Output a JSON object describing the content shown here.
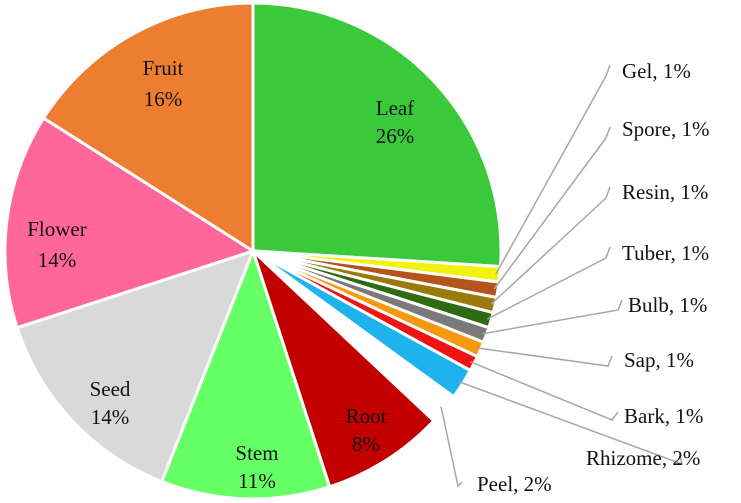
{
  "chart_data": {
    "type": "pie",
    "slices": [
      {
        "label": "Leaf",
        "value": 26,
        "value_label": "26%",
        "color": "#3ac93a",
        "label_style": "inside"
      },
      {
        "label": "Gel",
        "value": 1,
        "value_label": "1%",
        "color": "#f2f20e",
        "label_style": "outside"
      },
      {
        "label": "Spore",
        "value": 1,
        "value_label": "1%",
        "color": "#b5541a",
        "label_style": "outside"
      },
      {
        "label": "Resin",
        "value": 1,
        "value_label": "1%",
        "color": "#9a7a0a",
        "label_style": "outside"
      },
      {
        "label": "Tuber",
        "value": 1,
        "value_label": "1%",
        "color": "#2f6b12",
        "label_style": "outside"
      },
      {
        "label": "Bulb",
        "value": 1,
        "value_label": "1%",
        "color": "#7a7a7a",
        "label_style": "outside"
      },
      {
        "label": "Sap",
        "value": 1,
        "value_label": "1%",
        "color": "#f5990f",
        "label_style": "outside"
      },
      {
        "label": "Bark",
        "value": 1,
        "value_label": "1%",
        "color": "#ee1414",
        "label_style": "outside"
      },
      {
        "label": "Rhizome",
        "value": 2,
        "value_label": "2%",
        "color": "#1fb3ee",
        "label_style": "outside"
      },
      {
        "label": "Peel",
        "value": 2,
        "value_label": "2%",
        "color": "#ffffff",
        "label_style": "outside"
      },
      {
        "label": "Root",
        "value": 8,
        "value_label": "8%",
        "color": "#c20000",
        "label_style": "inside"
      },
      {
        "label": "Stem",
        "value": 11,
        "value_label": "11%",
        "color": "#66ff66",
        "label_style": "inside"
      },
      {
        "label": "Seed",
        "value": 14,
        "value_label": "14%",
        "color": "#d9d9d9",
        "label_style": "inside"
      },
      {
        "label": "Flower",
        "value": 14,
        "value_label": "14%",
        "color": "#ff6699",
        "label_style": "inside"
      },
      {
        "label": "Fruit",
        "value": 16,
        "value_label": "16%",
        "color": "#ed7d31",
        "label_style": "inside"
      }
    ],
    "slice_border_color": "#ffffff",
    "leader_line_color": "#a6a6a6",
    "title": "",
    "legend": "none"
  }
}
